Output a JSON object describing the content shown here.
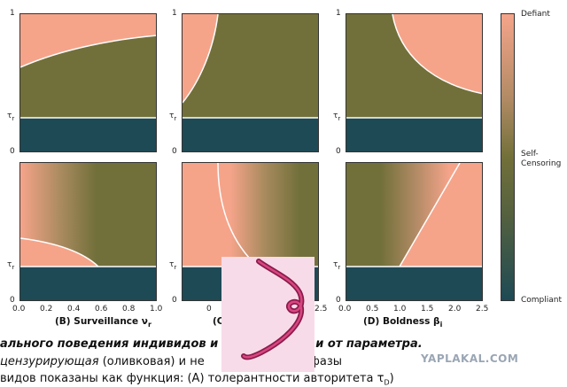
{
  "colors": {
    "defiant": "#f5a48a",
    "self_censoring": "#72703a",
    "compliant": "#1e4a55",
    "curve": "#ffffff"
  },
  "axes": {
    "y_top": "1",
    "y_tau": "τ",
    "y_tau_sub": "r",
    "y_bottom": "0"
  },
  "panels_top": {
    "b_caption": "",
    "c_caption": "",
    "d_caption": ""
  },
  "panels_bottom": {
    "b_caption_prefix": "(B) Surveillance ν",
    "b_caption_sub": "r",
    "c_caption": "(C",
    "d_caption_prefix": "(D) Boldness β",
    "d_caption_sub": "i",
    "x_ticks_b": [
      "0.0",
      "0.2",
      "0.4",
      "0.6",
      "0.8",
      "1.0"
    ],
    "x_ticks_c": [
      "0",
      "2.5"
    ],
    "x_ticks_d": [
      "0.0",
      "0.5",
      "1.0",
      "1.5",
      "2.0",
      "2.5"
    ]
  },
  "colorbar": {
    "top_label": "Defiant",
    "mid_label_1": "Self-",
    "mid_label_2": "Censoring",
    "bottom_label": "Compliant"
  },
  "text_lines": {
    "line1": "ального поведения индивидов и",
    "line1_tail": "и от параметра.",
    "line2_a": "цензурирующая",
    "line2_b": " (оливковая) и не",
    "line2_c": "сиковая) фазы",
    "line3": "видов показаны как функция: (A) толерантности авторитета τ",
    "line3_sub": "D",
    "line3_tail": ")"
  },
  "watermark": "YAPLAKAL.COM"
}
